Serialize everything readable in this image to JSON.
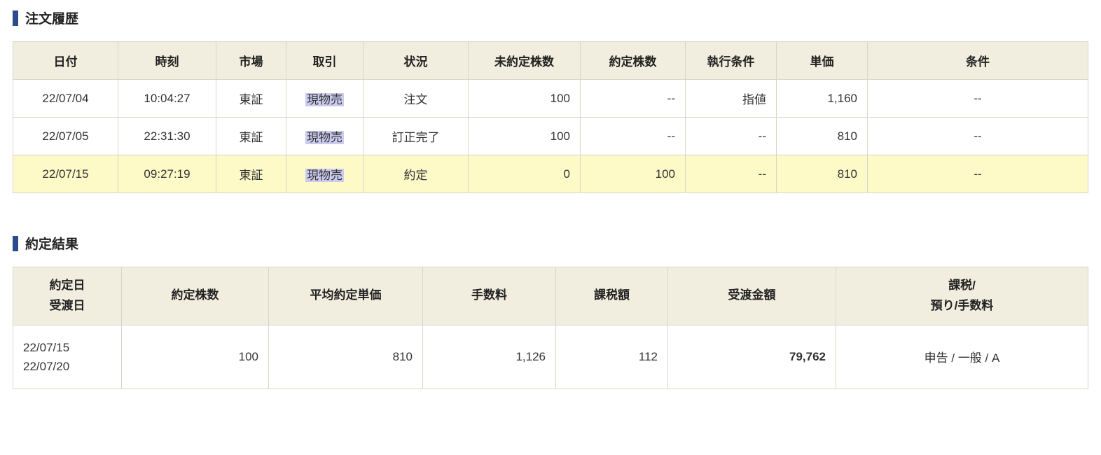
{
  "sections": {
    "order_history": {
      "title": "注文履歴",
      "columns": [
        "日付",
        "時刻",
        "市場",
        "取引",
        "状況",
        "未約定株数",
        "約定株数",
        "執行条件",
        "単価",
        "条件"
      ],
      "rows": [
        {
          "date": "22/07/04",
          "time": "10:04:27",
          "market": "東証",
          "trade": "現物売",
          "status": "注文",
          "unfilled": "100",
          "filled": "--",
          "exec_cond": "指値",
          "price": "1,160",
          "terms": "--",
          "highlight": false
        },
        {
          "date": "22/07/05",
          "time": "22:31:30",
          "market": "東証",
          "trade": "現物売",
          "status": "訂正完了",
          "unfilled": "100",
          "filled": "--",
          "exec_cond": "--",
          "price": "810",
          "terms": "--",
          "highlight": false
        },
        {
          "date": "22/07/15",
          "time": "09:27:19",
          "market": "東証",
          "trade": "現物売",
          "status": "約定",
          "unfilled": "0",
          "filled": "100",
          "exec_cond": "--",
          "price": "810",
          "terms": "--",
          "highlight": true
        }
      ]
    },
    "execution_result": {
      "title": "約定結果",
      "columns": [
        "約定日\n受渡日",
        "約定株数",
        "平均約定単価",
        "手数料",
        "課税額",
        "受渡金額",
        "課税/\n預り/手数料"
      ],
      "row": {
        "exec_date": "22/07/15",
        "settle_date": "22/07/20",
        "shares": "100",
        "avg_price": "810",
        "fee": "1,126",
        "tax": "112",
        "amount": "79,762",
        "tax_category": "申告 / 一般 / A"
      }
    }
  },
  "colors": {
    "accent": "#2c4b8c",
    "header_bg": "#f2eedf",
    "border": "#d8d4c8",
    "highlight_row": "#fdfac8",
    "highlight_text": "#cbcbf0"
  }
}
